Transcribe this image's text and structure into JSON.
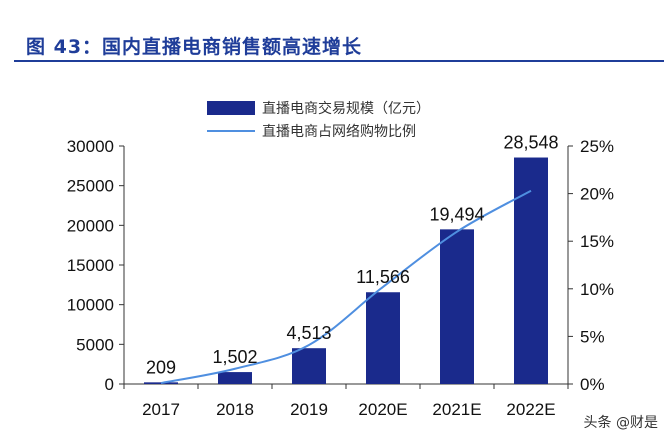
{
  "figure_title": "图 43：国内直播电商销售额高速增长",
  "watermark": "头条 @财是",
  "colors": {
    "bar": "#1a2a8c",
    "line": "#4f8fe0",
    "title": "#1f3d99",
    "axis": "#333333"
  },
  "chart_data": {
    "type": "bar",
    "categories": [
      "2017",
      "2018",
      "2019",
      "2020E",
      "2021E",
      "2022E"
    ],
    "series": [
      {
        "name": "直播电商交易规模（亿元）",
        "type": "bar",
        "axis": "left",
        "values": [
          209,
          1502,
          4513,
          11566,
          19494,
          28548
        ],
        "labels": [
          "209",
          "1,502",
          "4,513",
          "11,566",
          "19,494",
          "28,548"
        ]
      },
      {
        "name": "直播电商占网络购物比例",
        "type": "line",
        "axis": "right",
        "values": [
          0.1,
          1.6,
          4.1,
          10.2,
          16.0,
          20.3
        ]
      }
    ],
    "y_left": {
      "ylim": [
        0,
        30000
      ],
      "ticks": [
        "0",
        "5000",
        "10000",
        "15000",
        "20000",
        "25000",
        "30000"
      ]
    },
    "y_right": {
      "ylim": [
        0,
        25
      ],
      "ticks": [
        "0%",
        "5%",
        "10%",
        "15%",
        "20%",
        "25%"
      ]
    },
    "legend_position": "top-center",
    "grid": false
  }
}
